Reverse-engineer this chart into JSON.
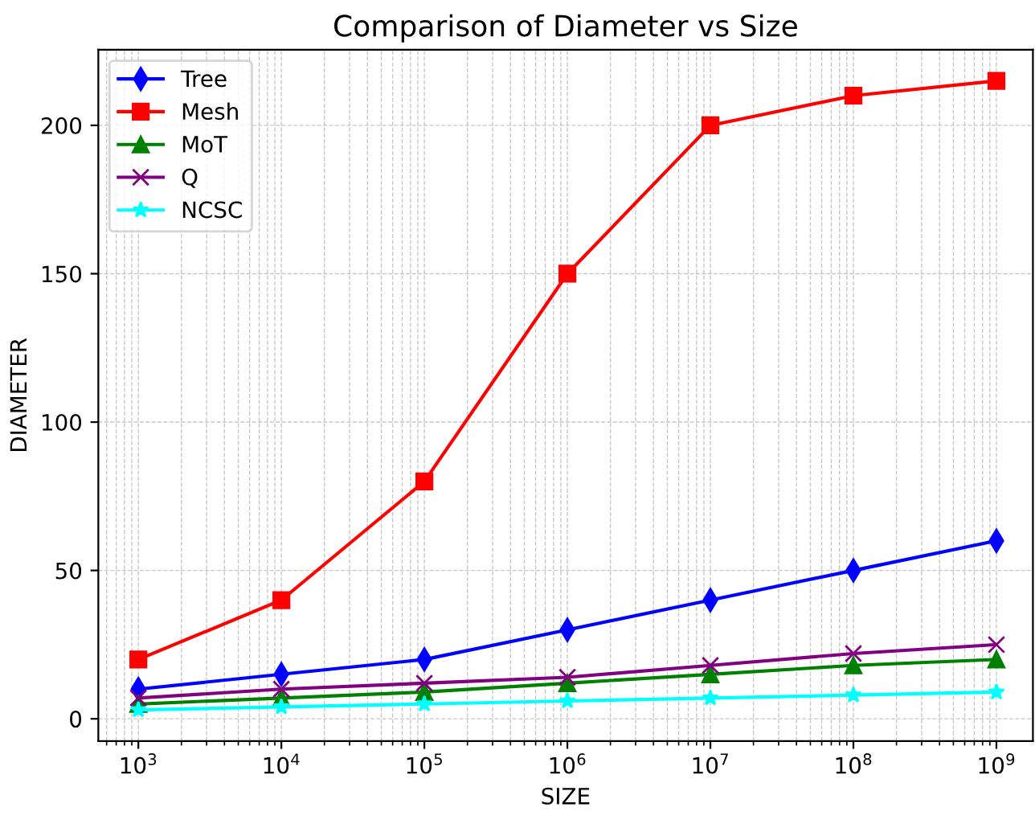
{
  "chart_data": {
    "type": "line",
    "title": "Comparison of Diameter vs Size",
    "xlabel": "SIZE",
    "ylabel": "DIAMETER",
    "x": [
      1000,
      10000,
      100000,
      1000000,
      10000000,
      100000000,
      1000000000
    ],
    "series": [
      {
        "name": "Tree",
        "color": "#0000ff",
        "marker": "diamond",
        "values": [
          10,
          15,
          20,
          30,
          40,
          50,
          60
        ]
      },
      {
        "name": "Mesh",
        "color": "#ff0000",
        "marker": "square",
        "values": [
          20,
          40,
          80,
          150,
          200,
          210,
          215
        ]
      },
      {
        "name": "MoT",
        "color": "#008000",
        "marker": "triangle",
        "values": [
          5,
          7,
          9,
          12,
          15,
          18,
          20
        ]
      },
      {
        "name": "Q",
        "color": "#800080",
        "marker": "cross",
        "values": [
          7,
          10,
          12,
          14,
          18,
          22,
          25
        ]
      },
      {
        "name": "NCSC",
        "color": "#00ffff",
        "marker": "star",
        "values": [
          3,
          4,
          5,
          6,
          7,
          8,
          9
        ]
      }
    ],
    "log": "x",
    "xlim": [
      525,
      1800000000
    ],
    "ylim": [
      -7.5,
      225.5
    ],
    "xticks": [
      {
        "value": 1000,
        "label": "10$^{3}$"
      },
      {
        "value": 10000,
        "label": "10$^{4}$"
      },
      {
        "value": 100000,
        "label": "10$^{5}$"
      },
      {
        "value": 1000000,
        "label": "10$^{6}$"
      },
      {
        "value": 10000000,
        "label": "10$^{7}$"
      },
      {
        "value": 100000000,
        "label": "10$^{8}$"
      },
      {
        "value": 1000000000,
        "label": "10$^{9}$"
      }
    ],
    "yticks": [
      0,
      50,
      100,
      150,
      200
    ],
    "grid": true,
    "legend": "top left",
    "line_style": "solid"
  }
}
